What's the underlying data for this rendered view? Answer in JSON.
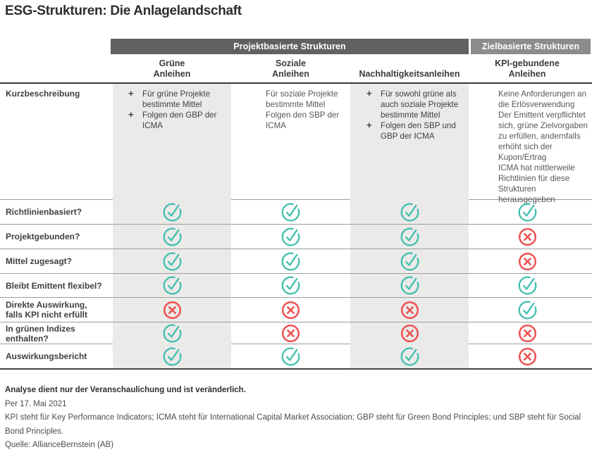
{
  "title": "ESG-Strukturen: Die Anlagelandschaft",
  "colors": {
    "teal_check": "#41bfae",
    "red_cross": "#ee5150",
    "panel_gray": "#eaeae9",
    "bar_dark_gray": "#616163",
    "bar_light_gray": "#8c8c8e"
  },
  "chart_data": {
    "type": "table",
    "title": "ESG-Strukturen: Die Anlagelandschaft",
    "group_headers": [
      "Projektbasierte Strukturen",
      "Zielbasierte Strukturen"
    ],
    "columns": [
      "Grüne\nAnleihen",
      "Soziale\nAnleihen",
      "Nachhaltigkeitsanleihen",
      "KPI-gebundene\nAnleihen"
    ],
    "description_label": "Kurzbeschreibung",
    "descriptions": [
      {
        "bulleted": true,
        "items": [
          "Für grüne Projekte bestimmte Mittel",
          "Folgen den GBP der ICMA"
        ]
      },
      {
        "bulleted": false,
        "items": [
          "Für soziale Projekte bestimmte Mittel",
          "Folgen den SBP der ICMA"
        ]
      },
      {
        "bulleted": true,
        "items": [
          "Für sowohl grüne als auch soziale Projekte bestimmte Mittel",
          "Folgen den SBP und GBP der ICMA"
        ]
      },
      {
        "bulleted": false,
        "items": [
          "Keine Anforderungen an die Erlösverwendung",
          "Der Emittent verpflichtet sich, grüne Zielvorgaben zu erfüllen, andernfalls erhöht sich der Kupon/Ertrag",
          "ICMA hat mittlerweile Richtlinien für diese Strukturen herausgegeben"
        ]
      }
    ],
    "rows": [
      {
        "label": "Richtlinienbasiert?",
        "values": [
          "check",
          "check",
          "check",
          "check"
        ]
      },
      {
        "label": "Projektgebunden?",
        "values": [
          "check",
          "check",
          "check",
          "cross"
        ]
      },
      {
        "label": "Mittel zugesagt?",
        "values": [
          "check",
          "check",
          "check",
          "cross"
        ]
      },
      {
        "label": "Bleibt Emittent flexibel?",
        "values": [
          "check",
          "check",
          "check",
          "check"
        ]
      },
      {
        "label": "Direkte Auswirkung,\nfalls KPI nicht erfüllt",
        "values": [
          "cross",
          "cross",
          "cross",
          "check"
        ]
      },
      {
        "label": "In grünen Indizes enthalten?",
        "values": [
          "check",
          "cross",
          "cross",
          "cross"
        ]
      },
      {
        "label": "Auswirkungsbericht",
        "values": [
          "check",
          "check",
          "check",
          "cross"
        ]
      }
    ]
  },
  "footer": {
    "disclaimer": "Analyse dient nur der Veranschaulichung und ist veränderlich.",
    "as_of": "Per 17. Mai 2021",
    "definitions": "KPI steht für Key Performance Indicators; ICMA steht für International Capital Market Association; GBP steht für Green Bond Principles; und SBP steht für Social Bond Principles.",
    "source": "Quelle: AllianceBernstein (AB)"
  }
}
